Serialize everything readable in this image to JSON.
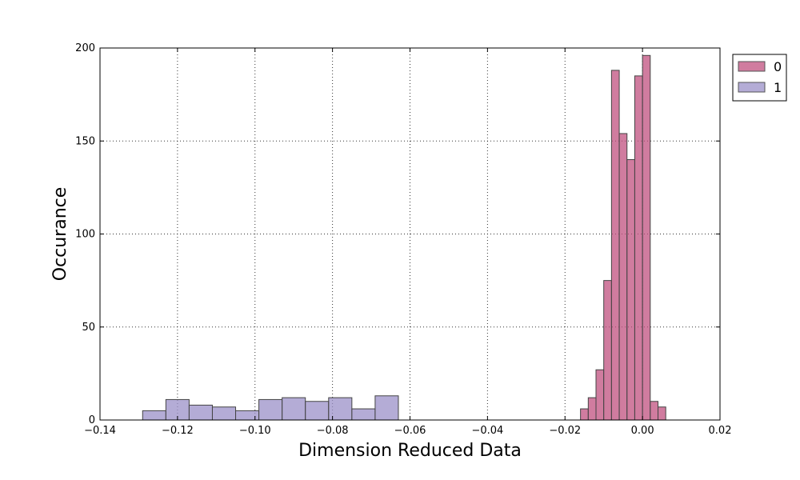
{
  "chart_data": {
    "type": "bar",
    "subtype": "histogram",
    "title": "",
    "xlabel": "Dimension Reduced Data",
    "ylabel": "Occurance",
    "xlim": [
      -0.14,
      0.02
    ],
    "ylim": [
      0,
      200
    ],
    "xticks": [
      "−0.14",
      "−0.12",
      "−0.10",
      "−0.08",
      "−0.06",
      "−0.04",
      "−0.02",
      "0.00",
      "0.02"
    ],
    "yticks": [
      "0",
      "50",
      "100",
      "150",
      "200"
    ],
    "grid": true,
    "legend_position": "outside-top-right",
    "series": [
      {
        "name": "0",
        "color": "#c0507f",
        "bins": [
          {
            "x0": -0.016,
            "x1": -0.014,
            "count": 6
          },
          {
            "x0": -0.014,
            "x1": -0.012,
            "count": 12
          },
          {
            "x0": -0.012,
            "x1": -0.01,
            "count": 27
          },
          {
            "x0": -0.01,
            "x1": -0.008,
            "count": 75
          },
          {
            "x0": -0.008,
            "x1": -0.006,
            "count": 188
          },
          {
            "x0": -0.006,
            "x1": -0.004,
            "count": 154
          },
          {
            "x0": -0.004,
            "x1": -0.002,
            "count": 140
          },
          {
            "x0": -0.002,
            "x1": 0.0,
            "count": 185
          },
          {
            "x0": 0.0,
            "x1": 0.002,
            "count": 196
          },
          {
            "x0": 0.002,
            "x1": 0.004,
            "count": 10
          },
          {
            "x0": 0.004,
            "x1": 0.006,
            "count": 7
          }
        ]
      },
      {
        "name": "1",
        "color": "#9b90c8",
        "bins": [
          {
            "x0": -0.129,
            "x1": -0.123,
            "count": 5
          },
          {
            "x0": -0.123,
            "x1": -0.117,
            "count": 11
          },
          {
            "x0": -0.117,
            "x1": -0.111,
            "count": 8
          },
          {
            "x0": -0.111,
            "x1": -0.105,
            "count": 7
          },
          {
            "x0": -0.105,
            "x1": -0.099,
            "count": 5
          },
          {
            "x0": -0.099,
            "x1": -0.093,
            "count": 11
          },
          {
            "x0": -0.093,
            "x1": -0.087,
            "count": 12
          },
          {
            "x0": -0.087,
            "x1": -0.081,
            "count": 10
          },
          {
            "x0": -0.081,
            "x1": -0.075,
            "count": 12
          },
          {
            "x0": -0.075,
            "x1": -0.069,
            "count": 6
          },
          {
            "x0": -0.069,
            "x1": -0.063,
            "count": 13
          }
        ]
      }
    ]
  }
}
